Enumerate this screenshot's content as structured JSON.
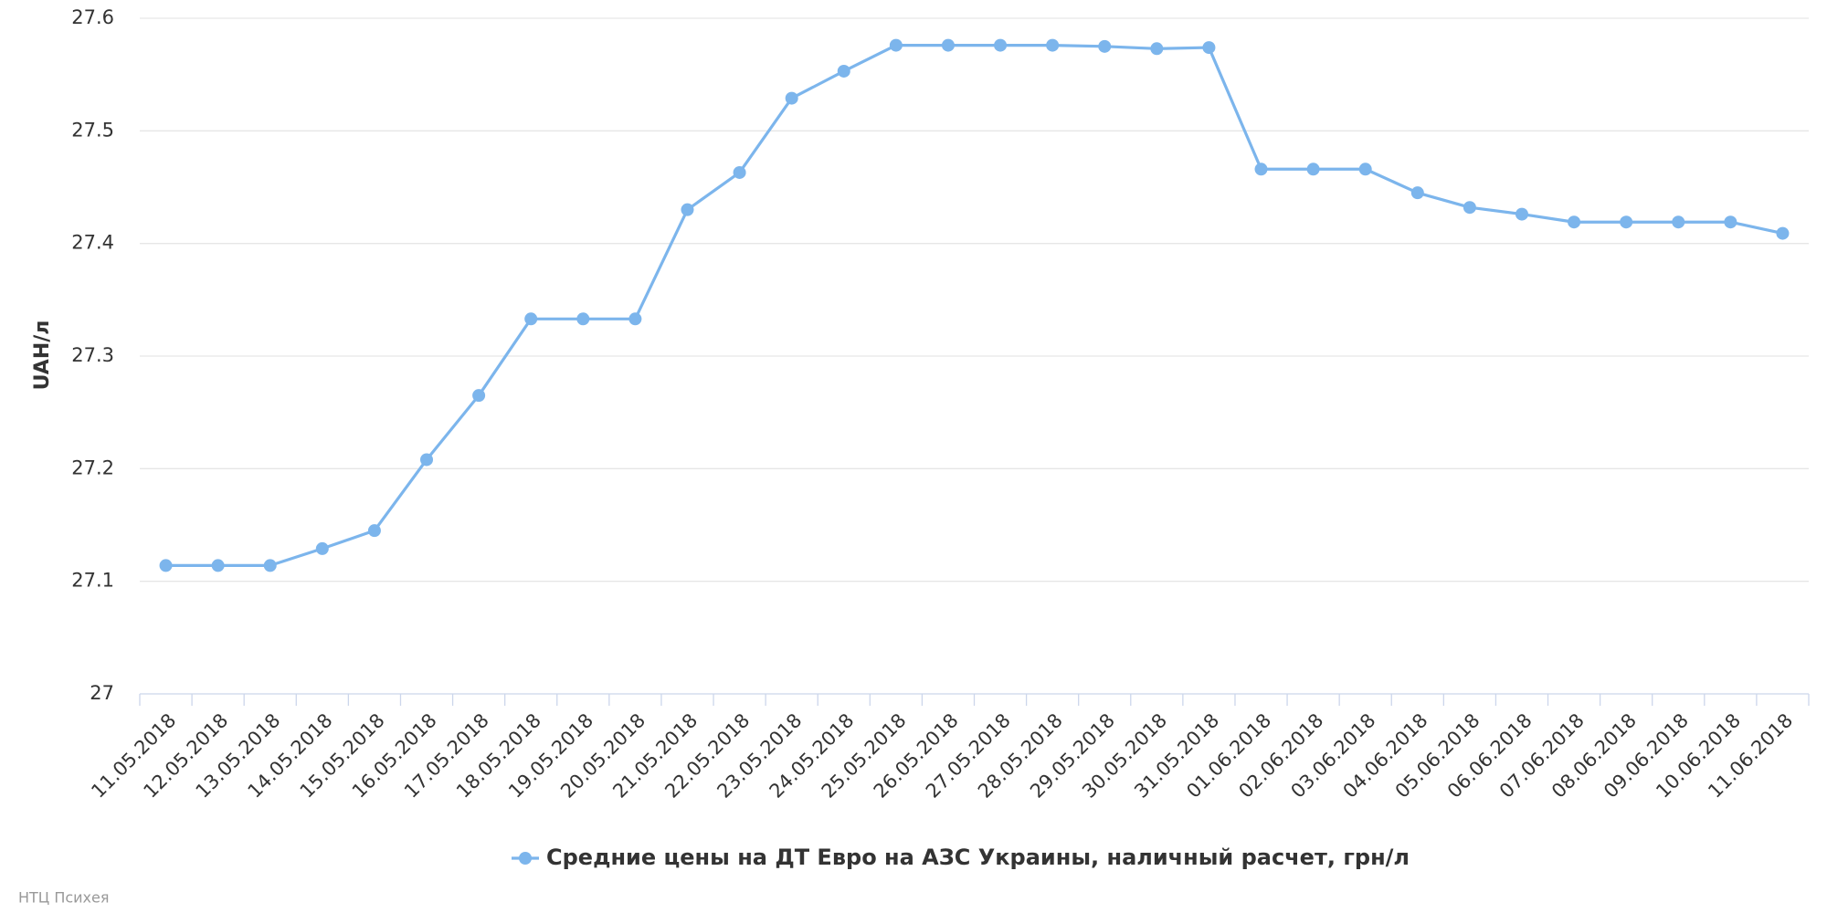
{
  "chart_data": {
    "type": "line",
    "y_label": "UAH/л",
    "credit": "НТЦ Психея",
    "categories": [
      "11.05.2018",
      "12.05.2018",
      "13.05.2018",
      "14.05.2018",
      "15.05.2018",
      "16.05.2018",
      "17.05.2018",
      "18.05.2018",
      "19.05.2018",
      "20.05.2018",
      "21.05.2018",
      "22.05.2018",
      "23.05.2018",
      "24.05.2018",
      "25.05.2018",
      "26.05.2018",
      "27.05.2018",
      "28.05.2018",
      "29.05.2018",
      "30.05.2018",
      "31.05.2018",
      "01.06.2018",
      "02.06.2018",
      "03.06.2018",
      "04.06.2018",
      "05.06.2018",
      "06.06.2018",
      "07.06.2018",
      "08.06.2018",
      "09.06.2018",
      "10.06.2018",
      "11.06.2018"
    ],
    "series": [
      {
        "name": "Средние цены на ДТ Евро на АЗС Украины, наличный расчет, грн/л",
        "color": "#7cb5ec",
        "values": [
          27.114,
          27.114,
          27.114,
          27.129,
          27.145,
          27.208,
          27.265,
          27.333,
          27.333,
          27.333,
          27.43,
          27.463,
          27.529,
          27.553,
          27.576,
          27.576,
          27.576,
          27.576,
          27.575,
          27.573,
          27.574,
          27.466,
          27.466,
          27.466,
          27.445,
          27.432,
          27.426,
          27.419,
          27.419,
          27.419,
          27.419,
          27.409
        ]
      }
    ],
    "ylim": [
      27,
      27.6
    ],
    "yticks": [
      27,
      27.1,
      27.2,
      27.3,
      27.4,
      27.5,
      27.6
    ],
    "grid": true
  }
}
